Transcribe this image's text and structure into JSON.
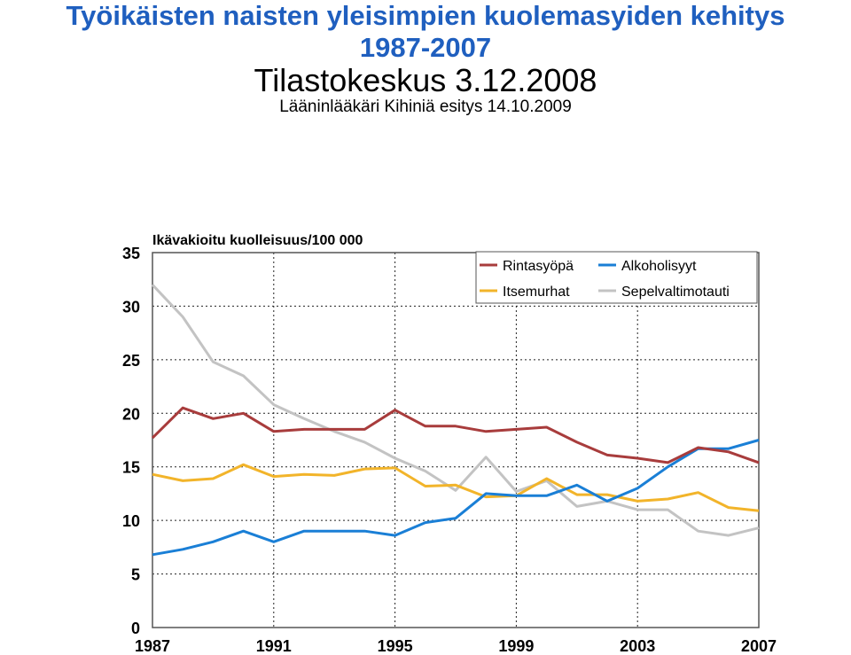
{
  "slide": {
    "title_line1": "Työikäisten naisten yleisimpien kuolemasyiden kehitys",
    "title_line2": "1987-2007",
    "subtitle": "Tilastokeskus 3.12.2008",
    "presenter": "Lääninlääkäri Kihiniä esitys 14.10.2009"
  },
  "chart_data": {
    "type": "line",
    "title": "Ikävakioitu kuolleisuus/100 000",
    "x": [
      1987,
      1988,
      1989,
      1990,
      1991,
      1992,
      1993,
      1994,
      1995,
      1996,
      1997,
      1998,
      1999,
      2000,
      2001,
      2002,
      2003,
      2004,
      2005,
      2006,
      2007
    ],
    "x_ticks": [
      "1987",
      "1991",
      "1995",
      "1999",
      "2003",
      "2007"
    ],
    "y_ticks": [
      "0",
      "5",
      "10",
      "15",
      "20",
      "25",
      "30",
      "35"
    ],
    "ylim": [
      0,
      35
    ],
    "grid": true,
    "legend_position": "top-right",
    "series": [
      {
        "name": "Rintasyöpä",
        "color": "#a83c3c",
        "values": [
          17.7,
          20.5,
          19.5,
          20.0,
          18.3,
          18.5,
          18.5,
          18.5,
          20.3,
          18.8,
          18.8,
          18.3,
          18.5,
          18.7,
          17.3,
          16.1,
          15.8,
          15.4,
          16.8,
          16.4,
          15.4
        ]
      },
      {
        "name": "Alkoholisyyt",
        "color": "#1a7fd6",
        "values": [
          6.8,
          7.3,
          8.0,
          9.0,
          8.0,
          9.0,
          9.0,
          9.0,
          8.6,
          9.8,
          10.2,
          12.5,
          12.3,
          12.3,
          13.3,
          11.8,
          13.0,
          15.0,
          16.7,
          16.7,
          17.5
        ]
      },
      {
        "name": "Itsemurhat",
        "color": "#f2b42a",
        "values": [
          14.3,
          13.7,
          13.9,
          15.2,
          14.1,
          14.3,
          14.2,
          14.8,
          14.9,
          13.2,
          13.3,
          12.2,
          12.3,
          13.9,
          12.4,
          12.4,
          11.8,
          12.0,
          12.6,
          11.2,
          10.9
        ]
      },
      {
        "name": "Sepelvaltimotauti",
        "color": "#c3c3c3",
        "values": [
          32.0,
          29.0,
          24.8,
          23.5,
          20.8,
          19.5,
          18.3,
          17.3,
          15.8,
          14.6,
          12.8,
          15.9,
          12.7,
          13.7,
          11.3,
          11.8,
          11.0,
          11.0,
          9.0,
          8.6,
          9.3
        ]
      }
    ]
  }
}
